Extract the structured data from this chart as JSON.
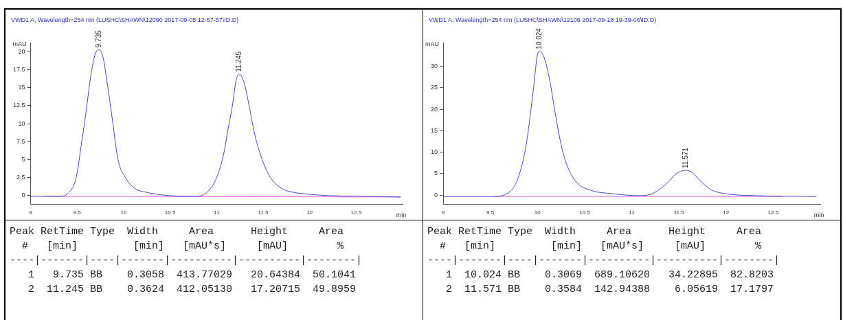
{
  "chart_data": [
    {
      "type": "line",
      "title": "VWD1 A, Wavelength=254 nm (LUSHC\\SHAWN\\12090 2017-09-05 12-57-57\\ID.D)",
      "xlabel": "min",
      "ylabel": "mAU",
      "xlim": [
        9,
        13
      ],
      "xticks": [
        9,
        9.5,
        10,
        10.5,
        11,
        11.5,
        12,
        12.5
      ],
      "ylim": [
        -1.2,
        21.2
      ],
      "yticks": [
        0,
        2.5,
        5,
        7.5,
        10,
        12.5,
        15,
        17.5,
        20
      ],
      "grid": false,
      "legend": false,
      "marker": "none",
      "line_style": "solid",
      "series": [
        {
          "color": "#4646c8",
          "x": [
            9,
            9.15,
            9.31,
            9.4,
            9.49,
            9.55,
            9.59,
            9.64,
            9.69,
            9.735,
            9.78,
            9.82,
            9.88,
            9.94,
            10.02,
            10.12,
            10.23,
            10.36,
            10.48,
            10.71,
            10.78,
            10.9,
            11.0,
            11.08,
            11.12,
            11.17,
            11.21,
            11.245,
            11.3,
            11.35,
            11.41,
            11.49,
            11.58,
            11.7,
            11.81,
            11.99,
            12.2,
            12.6,
            12.98
          ],
          "values": [
            -0.1,
            -0.1,
            -0.1,
            0.3,
            2.5,
            7.5,
            11,
            16,
            19.5,
            20.3,
            19.2,
            16,
            10.5,
            5,
            2.5,
            1,
            0.5,
            0.2,
            0,
            -0.1,
            -0.1,
            0.5,
            2.5,
            6,
            9,
            12.5,
            16,
            16.9,
            15.5,
            12.5,
            8.5,
            5,
            2.5,
            1,
            0.5,
            0.2,
            0,
            -0.1,
            -0.2
          ]
        },
        {
          "color": "#e060e0",
          "x": [
            9.15,
            12.98
          ],
          "values": [
            -0.1,
            -0.2
          ]
        }
      ],
      "annotations": [
        {
          "text": "9.735",
          "x": 9.735,
          "y": 20.3
        },
        {
          "text": "11.245",
          "x": 11.245,
          "y": 16.9
        },
        "Peak RetTime Type  Width     Area      Height     Area",
        "  #   [min]         [min]   [mAU*s]     [mAU]        %",
        "----|-------|----|-------|----------|----------|--------|",
        "   1   9.735 BB    0.3058  413.77029   20.64384  50.1041",
        "   2  11.245 BB    0.3624  412.05130   17.20715  49.8959"
      ]
    },
    {
      "type": "line",
      "title": "VWD1 A, Wavelength=254 nm (LUSHC\\SHAWN\\12106 2017-09-18 19-39-06\\ID.D)",
      "xlabel": "min",
      "ylabel": "mAU",
      "xlim": [
        9,
        13
      ],
      "xticks": [
        9,
        9.5,
        10,
        10.5,
        11,
        11.5,
        12,
        12.5
      ],
      "ylim": [
        -2.1,
        35.4
      ],
      "yticks": [
        0,
        5,
        10,
        15,
        20,
        25,
        30
      ],
      "grid": false,
      "legend": false,
      "marker": "none",
      "line_style": "solid",
      "series": [
        {
          "color": "#4646c8",
          "x": [
            9.0,
            9.53,
            9.67,
            9.75,
            9.81,
            9.87,
            9.91,
            9.96,
            10.0,
            10.024,
            10.07,
            10.13,
            10.19,
            10.26,
            10.33,
            10.42,
            10.57,
            10.77,
            11.08,
            11.2,
            11.29,
            11.38,
            11.46,
            11.571,
            11.64,
            11.72,
            11.84,
            12.01,
            12.3,
            12.96
          ],
          "values": [
            -0.3,
            -0.3,
            0.3,
            1.9,
            5,
            10.4,
            16.2,
            25.2,
            32.7,
            33.5,
            32.1,
            26.8,
            18.9,
            10.9,
            6.1,
            2.9,
            1.1,
            0.4,
            -0.1,
            0.2,
            1.3,
            2.9,
            4.8,
            5.8,
            5.3,
            3.5,
            1.3,
            0.3,
            -0.1,
            -0.3
          ]
        },
        {
          "color": "#e060e0",
          "x": [
            9.53,
            12.59
          ],
          "values": [
            -0.3,
            -0.3
          ]
        }
      ],
      "annotations": [
        {
          "text": "10.024",
          "x": 10.024,
          "y": 33.5
        },
        {
          "text": "11.571",
          "x": 11.571,
          "y": 5.8
        },
        "Peak RetTime Type  Width     Area      Height     Area",
        "  #   [min]         [min]   [mAU*s]     [mAU]        %",
        "----|-------|----|-------|----------|----------|--------|",
        "   1  10.024 BB    0.3069  689.10620   34.22895  82.8203",
        "   2  11.571 BB    0.3584  142.94388    6.05619  17.1797"
      ]
    }
  ]
}
